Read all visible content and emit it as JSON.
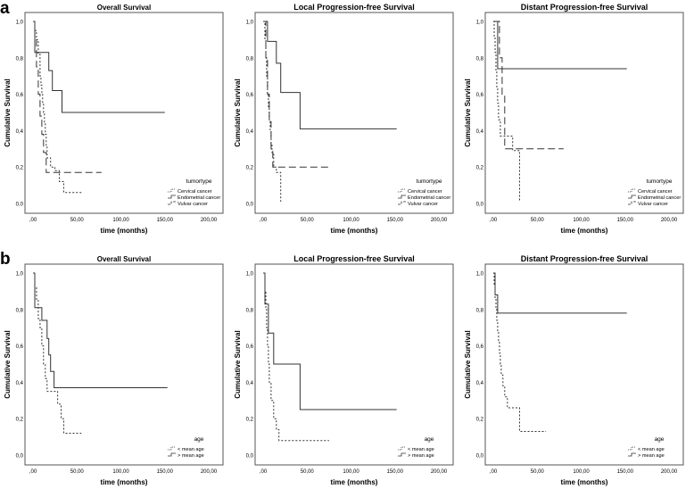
{
  "rows": [
    {
      "letter": "a"
    },
    {
      "letter": "b"
    }
  ],
  "chart_data": [
    {
      "type": "line",
      "title": "Overall Survival",
      "xlabel": "time (months)",
      "ylabel": "Cumulative Survival",
      "xlim": [
        0,
        200
      ],
      "ylim": [
        0,
        1
      ],
      "xticks": [
        ",00",
        "50,00",
        "100,00",
        "150,00",
        "200,00"
      ],
      "yticks": [
        "0,0",
        "0,2",
        "0,4",
        "0,6",
        "0,8",
        "1,0"
      ],
      "legend_title": "tumortype",
      "legend_position": "bottom-right",
      "series": [
        {
          "name": "Cervical cancer",
          "style": "dotted",
          "points": [
            [
              0,
              1.0
            ],
            [
              2,
              0.95
            ],
            [
              4,
              0.9
            ],
            [
              6,
              0.82
            ],
            [
              8,
              0.7
            ],
            [
              9,
              0.65
            ],
            [
              10,
              0.6
            ],
            [
              11,
              0.55
            ],
            [
              12,
              0.5
            ],
            [
              13,
              0.44
            ],
            [
              14,
              0.38
            ],
            [
              15,
              0.32
            ],
            [
              16,
              0.25
            ],
            [
              20,
              0.2
            ],
            [
              25,
              0.18
            ],
            [
              30,
              0.12
            ],
            [
              35,
              0.06
            ],
            [
              55,
              0.06
            ]
          ]
        },
        {
          "name": "Endometrial cancer",
          "style": "solid",
          "points": [
            [
              0,
              1.0
            ],
            [
              2,
              0.83
            ],
            [
              15,
              0.83
            ],
            [
              18,
              0.73
            ],
            [
              22,
              0.62
            ],
            [
              28,
              0.62
            ],
            [
              33,
              0.5
            ],
            [
              150,
              0.5
            ]
          ]
        },
        {
          "name": "Vulvar cancer",
          "style": "dashed",
          "points": [
            [
              0,
              1.0
            ],
            [
              2,
              0.9
            ],
            [
              4,
              0.75
            ],
            [
              6,
              0.6
            ],
            [
              8,
              0.48
            ],
            [
              10,
              0.38
            ],
            [
              12,
              0.28
            ],
            [
              15,
              0.17
            ],
            [
              78,
              0.17
            ]
          ]
        }
      ]
    },
    {
      "type": "line",
      "title": "Local Progression-free Survival",
      "xlabel": "time (months)",
      "ylabel": "Cumulative Survival",
      "xlim": [
        0,
        200
      ],
      "ylim": [
        0,
        1
      ],
      "xticks": [
        ",00",
        "50,00",
        "100,00",
        "150,00",
        "200,00"
      ],
      "yticks": [
        "0,0",
        "0,2",
        "0,4",
        "0,6",
        "0,8",
        "1,0"
      ],
      "legend_title": "tumortype",
      "legend_position": "bottom-right",
      "series": [
        {
          "name": "Cervical cancer",
          "style": "dotted",
          "points": [
            [
              0,
              1.0
            ],
            [
              2,
              0.9
            ],
            [
              3,
              0.8
            ],
            [
              4,
              0.7
            ],
            [
              5,
              0.6
            ],
            [
              6,
              0.52
            ],
            [
              7,
              0.45
            ],
            [
              8,
              0.4
            ],
            [
              9,
              0.33
            ],
            [
              10,
              0.28
            ],
            [
              12,
              0.2
            ],
            [
              15,
              0.17
            ],
            [
              20,
              0.01
            ]
          ]
        },
        {
          "name": "Endometrial cancer",
          "style": "solid",
          "points": [
            [
              0,
              1.0
            ],
            [
              5,
              0.89
            ],
            [
              15,
              0.77
            ],
            [
              20,
              0.61
            ],
            [
              42,
              0.41
            ],
            [
              152,
              0.41
            ]
          ]
        },
        {
          "name": "Vulvar cancer",
          "style": "dashed",
          "points": [
            [
              0,
              1.0
            ],
            [
              3,
              0.8
            ],
            [
              5,
              0.6
            ],
            [
              7,
              0.45
            ],
            [
              9,
              0.3
            ],
            [
              11,
              0.2
            ],
            [
              75,
              0.2
            ]
          ]
        }
      ]
    },
    {
      "type": "line",
      "title": "Distant Progression-free Survival",
      "xlabel": "time (months)",
      "ylabel": "Cumulative Survival",
      "xlim": [
        0,
        200
      ],
      "ylim": [
        0,
        1
      ],
      "xticks": [
        ",00",
        "50,00",
        "100,00",
        "150,00",
        "200,00"
      ],
      "yticks": [
        "0,0",
        "0,2",
        "0,4",
        "0,6",
        "0,8",
        "1,0"
      ],
      "legend_title": "tumortype",
      "legend_position": "bottom-right",
      "series": [
        {
          "name": "Cervical cancer",
          "style": "dotted",
          "points": [
            [
              0,
              1.0
            ],
            [
              1,
              0.92
            ],
            [
              2,
              0.83
            ],
            [
              3,
              0.73
            ],
            [
              4,
              0.64
            ],
            [
              5,
              0.55
            ],
            [
              6,
              0.46
            ],
            [
              8,
              0.37
            ],
            [
              18,
              0.37
            ],
            [
              22,
              0.29
            ],
            [
              30,
              0.29
            ],
            [
              30,
              0.01
            ]
          ]
        },
        {
          "name": "Endometrial cancer",
          "style": "solid",
          "points": [
            [
              0,
              1.0
            ],
            [
              5,
              0.74
            ],
            [
              152,
              0.74
            ]
          ]
        },
        {
          "name": "Vulvar cancer",
          "style": "dashed",
          "points": [
            [
              0,
              1.0
            ],
            [
              5,
              1.0
            ],
            [
              7,
              0.8
            ],
            [
              10,
              0.6
            ],
            [
              13,
              0.3
            ],
            [
              80,
              0.3
            ]
          ]
        }
      ]
    },
    {
      "type": "line",
      "title": "Overall Survival",
      "xlabel": "time (months)",
      "ylabel": "Cumulative Survival",
      "xlim": [
        0,
        200
      ],
      "ylim": [
        0,
        1
      ],
      "xticks": [
        ",00",
        "50,00",
        "100,00",
        "150,00",
        "200,00"
      ],
      "yticks": [
        "0,0",
        "0,2",
        "0,4",
        "0,6",
        "0,8",
        "1,0"
      ],
      "legend_title": "age",
      "legend_position": "bottom-right",
      "series": [
        {
          "name": "< mean age",
          "style": "dotted",
          "points": [
            [
              0,
              1.0
            ],
            [
              2,
              0.92
            ],
            [
              4,
              0.85
            ],
            [
              6,
              0.75
            ],
            [
              8,
              0.7
            ],
            [
              10,
              0.6
            ],
            [
              12,
              0.5
            ],
            [
              14,
              0.42
            ],
            [
              16,
              0.35
            ],
            [
              25,
              0.35
            ],
            [
              28,
              0.28
            ],
            [
              32,
              0.2
            ],
            [
              35,
              0.12
            ],
            [
              55,
              0.12
            ]
          ]
        },
        {
          "name": "> mean age",
          "style": "solid",
          "points": [
            [
              0,
              1.0
            ],
            [
              2,
              0.81
            ],
            [
              8,
              0.81
            ],
            [
              10,
              0.74
            ],
            [
              15,
              0.74
            ],
            [
              16,
              0.64
            ],
            [
              18,
              0.55
            ],
            [
              20,
              0.46
            ],
            [
              24,
              0.37
            ],
            [
              153,
              0.37
            ]
          ]
        }
      ]
    },
    {
      "type": "line",
      "title": "Local Progression-free Survival",
      "xlabel": "time (months)",
      "ylabel": "Cumulative Survival",
      "xlim": [
        0,
        200
      ],
      "ylim": [
        0,
        1
      ],
      "xticks": [
        ",00",
        "50,00",
        "100,00",
        "150,00",
        "200,00"
      ],
      "yticks": [
        "0,0",
        "0,2",
        "0,4",
        "0,6",
        "0,8",
        "1,0"
      ],
      "legend_title": "age",
      "legend_position": "bottom-right",
      "series": [
        {
          "name": "< mean age",
          "style": "dotted",
          "points": [
            [
              0,
              1.0
            ],
            [
              2,
              0.9
            ],
            [
              3,
              0.8
            ],
            [
              4,
              0.7
            ],
            [
              5,
              0.6
            ],
            [
              6,
              0.5
            ],
            [
              7,
              0.4
            ],
            [
              9,
              0.3
            ],
            [
              12,
              0.2
            ],
            [
              15,
              0.14
            ],
            [
              18,
              0.08
            ],
            [
              75,
              0.08
            ]
          ]
        },
        {
          "name": "> mean age",
          "style": "solid",
          "points": [
            [
              0,
              1.0
            ],
            [
              2,
              0.83
            ],
            [
              6,
              0.67
            ],
            [
              12,
              0.5
            ],
            [
              42,
              0.25
            ],
            [
              152,
              0.25
            ]
          ]
        }
      ]
    },
    {
      "type": "line",
      "title": "Distant Progression-free Survival",
      "xlabel": "time (months)",
      "ylabel": "Cumulative Survival",
      "xlim": [
        0,
        200
      ],
      "ylim": [
        0,
        1
      ],
      "xticks": [
        ",00",
        "50,00",
        "100,00",
        "150,00",
        "200,00"
      ],
      "yticks": [
        "0,0",
        "0,2",
        "0,4",
        "0,6",
        "0,8",
        "1,0"
      ],
      "legend_title": "age",
      "legend_position": "bottom-right",
      "series": [
        {
          "name": "< mean age",
          "style": "dotted",
          "points": [
            [
              0,
              1.0
            ],
            [
              1,
              0.93
            ],
            [
              2,
              0.86
            ],
            [
              3,
              0.8
            ],
            [
              4,
              0.74
            ],
            [
              5,
              0.68
            ],
            [
              6,
              0.62
            ],
            [
              7,
              0.56
            ],
            [
              8,
              0.5
            ],
            [
              9,
              0.44
            ],
            [
              11,
              0.38
            ],
            [
              13,
              0.32
            ],
            [
              16,
              0.26
            ],
            [
              25,
              0.26
            ],
            [
              30,
              0.13
            ],
            [
              60,
              0.13
            ]
          ]
        },
        {
          "name": "> mean age",
          "style": "solid",
          "points": [
            [
              0,
              1.0
            ],
            [
              2,
              0.88
            ],
            [
              5,
              0.78
            ],
            [
              152,
              0.78
            ]
          ]
        }
      ]
    }
  ]
}
